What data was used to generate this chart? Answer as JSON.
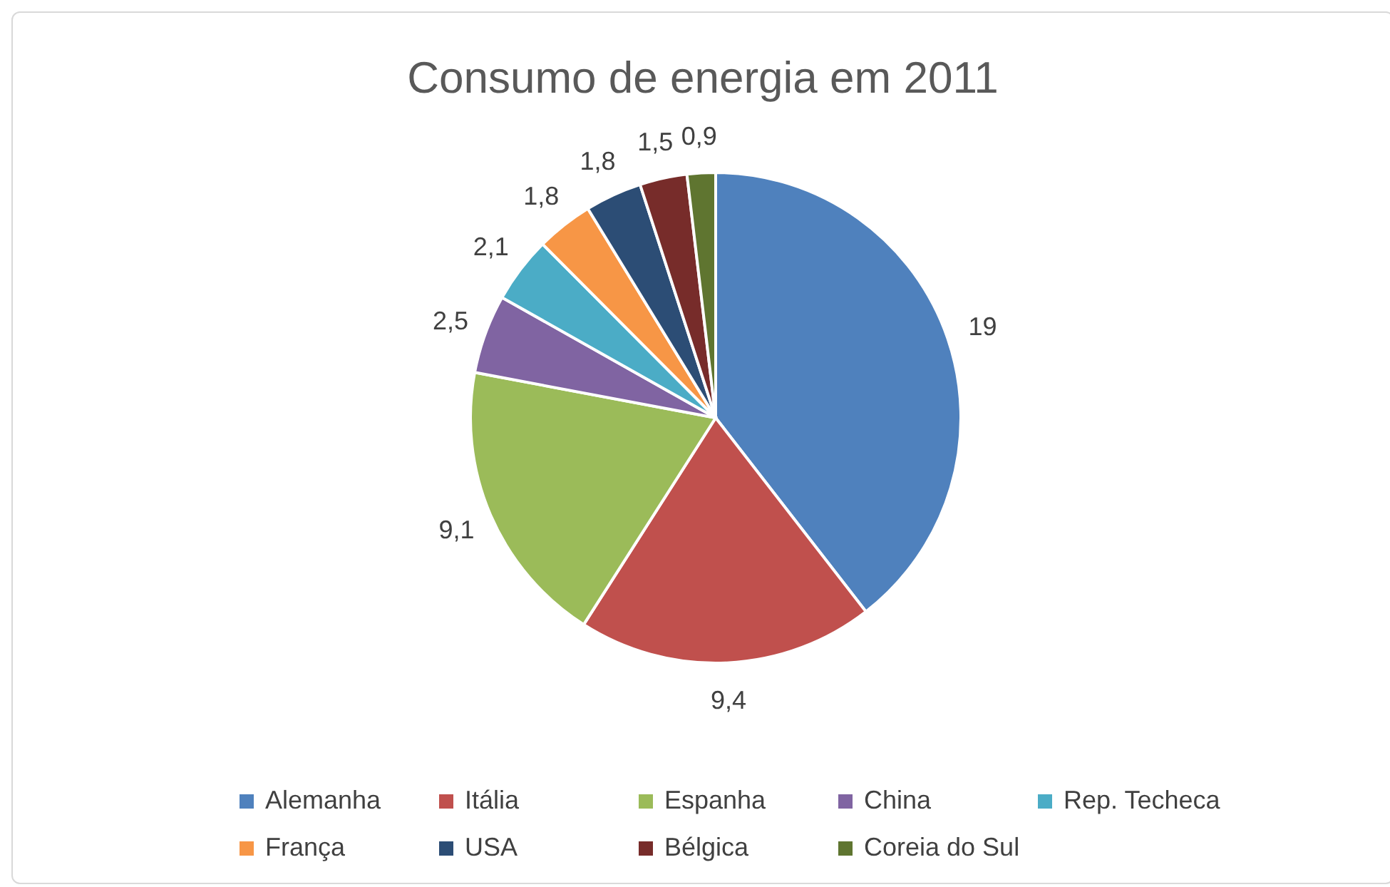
{
  "chart_data": {
    "type": "pie",
    "title": "Consumo de energia em 2011",
    "categories": [
      "Alemanha",
      "Itália",
      "Espanha",
      "China",
      "Rep. Techeca",
      "França",
      "USA",
      "Bélgica",
      "Coreia do Sul"
    ],
    "values": [
      19,
      9.4,
      9.1,
      2.5,
      2.1,
      1.8,
      1.8,
      1.5,
      0.9
    ],
    "value_labels": [
      "19",
      "9,4",
      "9,1",
      "2,5",
      "2,1",
      "1,8",
      "1,8",
      "1,5",
      "0,9"
    ],
    "colors": [
      "#4f81bd",
      "#c0504d",
      "#9bbb59",
      "#8064a2",
      "#4bacc6",
      "#f79646",
      "#2c4d75",
      "#772c2a",
      "#5f7530"
    ],
    "legend": "bottom"
  }
}
